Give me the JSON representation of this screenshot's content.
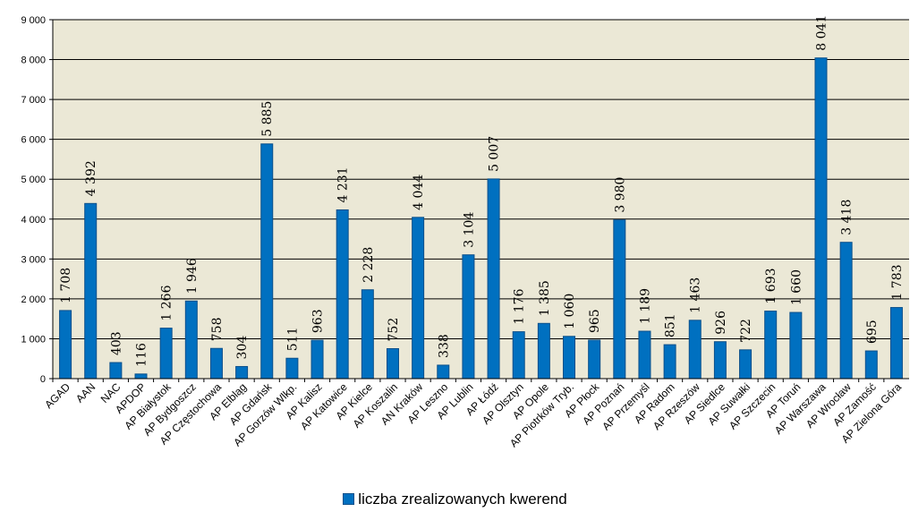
{
  "chart_data": {
    "type": "bar",
    "categories": [
      "AGAD",
      "AAN",
      "NAC",
      "APDOP",
      "AP Białystok",
      "AP Bydgoszcz",
      "AP Częstochowa",
      "AP Elbląg",
      "AP Gdańsk",
      "AP Gorzów Wlkp.",
      "AP Kalisz",
      "AP Katowice",
      "AP Kielce",
      "AP Koszalin",
      "AN Kraków",
      "AP Leszno",
      "AP Lublin",
      "AP Łódź",
      "AP Olsztyn",
      "AP Opole",
      "AP Piotrków Tryb.",
      "AP Płock",
      "AP Poznań",
      "AP Przemyśl",
      "AP Radom",
      "AP Rzeszów",
      "AP Siedlce",
      "AP Suwałki",
      "AP Szczecin",
      "AP Toruń",
      "AP Warszawa",
      "AP Wrocław",
      "AP Zamość",
      "AP Zielona Góra"
    ],
    "series": [
      {
        "name": "liczba zrealizowanych kwerend",
        "values": [
          1708,
          4392,
          403,
          116,
          1266,
          1946,
          758,
          304,
          5885,
          511,
          963,
          4231,
          2228,
          752,
          4044,
          338,
          3104,
          5007,
          1176,
          1385,
          1060,
          965,
          3980,
          1189,
          851,
          1463,
          926,
          722,
          1693,
          1660,
          8041,
          3418,
          695,
          1783
        ],
        "labels": [
          "1 708",
          "4 392",
          "403",
          "116",
          "1 266",
          "1 946",
          "758",
          "304",
          "5 885",
          "511",
          "963",
          "4 231",
          "2 228",
          "752",
          "4 044",
          "338",
          "3 104",
          "5 007",
          "1 176",
          "1 385",
          "1 060",
          "965",
          "3 980",
          "1 189",
          "851",
          "1 463",
          "926",
          "722",
          "1 693",
          "1 660",
          "8 041",
          "3 418",
          "695",
          "1 783"
        ]
      }
    ],
    "ylim": [
      0,
      9000
    ],
    "yticks": [
      0,
      1000,
      2000,
      3000,
      4000,
      5000,
      6000,
      7000,
      8000,
      9000
    ],
    "ytick_labels": [
      "0",
      "1 000",
      "2 000",
      "3 000",
      "4 000",
      "5 000",
      "6 000",
      "7 000",
      "8 000",
      "9 000"
    ],
    "grid": "horizontal",
    "legend_position": "bottom",
    "colors": {
      "bar": "#0070c0",
      "bar_edge": "#0a4f8a",
      "plot_background": "#ebe8d6",
      "grid": "#000000"
    }
  }
}
